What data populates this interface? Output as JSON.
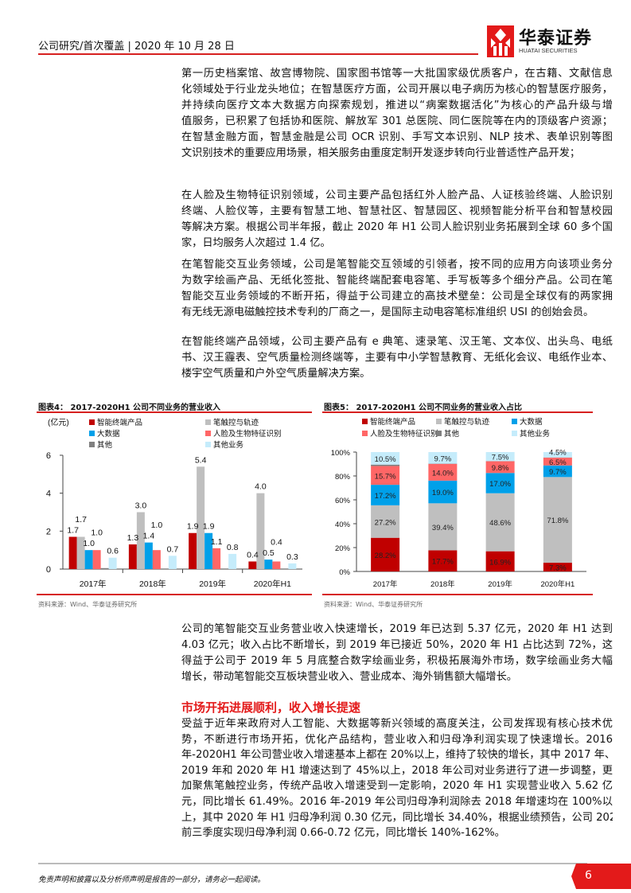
{
  "header": {
    "text": "公司研究/首次覆盖 | 2020 年 10 月 28 日",
    "logo_cn": "华泰证券",
    "logo_en": "HUATAI SECURITIES",
    "accent": "#d6201f"
  },
  "paragraphs": [
    {
      "lines": [
        "第一历史档案馆、故宫博物院、国家图书馆等一大批国家级优质客户，在古籍、文献信息",
        "化领域处于行业龙头地位；在智慧医疗方面，公司开展以电子病历为核心的智慧医疗服务，",
        "并持续向医疗文本大数据方向探索规划，推进以“病案数据活化”为核心的产品升级与增",
        "值服务，已积累了包括协和医院、解放军 301 总医院、同仁医院等在内的顶级客户资源；",
        "在智慧金融方面，智慧金融是公司 OCR 识别、手写文本识别、NLP 技术、表单识别等图",
        "文识别技术的重要应用场景，相关服务由重度定制开发逐步转向行业普适性产品开发；"
      ]
    },
    {
      "lines": [
        "在人脸及生物特征识别领域，公司主要产品包括红外人脸产品、人证核验终端、人脸识别",
        "终端、人脸仪等，主要有智慧工地、智慧社区、智慧园区、视频智能分析平台和智慧校园",
        "等解决方案。根据公司半年报，截止 2020 年 H1 公司人脸识别业务拓展到全球 60 多个国",
        "家，日均服务人次超过 1.4 亿。"
      ]
    },
    {
      "lines": [
        "在笔智能交互业务领域，公司是笔智能交互领域的引领者，按不同的应用方向该项业务分",
        "为数字绘画产品、无纸化签批、智能终端配套电容笔、手写板等多个细分产品。公司在笔",
        "智能交互业务领域的不断开拓，得益于公司建立的高技术壁垒：公司是全球仅有的两家拥",
        "有无线无源电磁触控技术专利的厂商之一，是国际主动电容笔标准组织 USI 的创始会员。"
      ]
    },
    {
      "lines": [
        "在智能终端产品领域，公司主要产品有 e 典笔、速录笔、汉王笔、文本仪、出头鸟、电纸",
        "书、汉王霾表、空气质量检测终端等，主要有中小学智慧教育、无纸化会议、电纸作业本、",
        "楼宇空气质量和户外空气质量解决方案。"
      ]
    },
    {
      "lines": [
        "公司的笔智能交互业务营业收入快速增长，2019 年已达到 5.37 亿元，2020 年 H1 达到",
        "4.03 亿元；收入占比不断增长，到 2019 年已接近 50%，2020 年 H1 占比达到 72%，这",
        "得益于公司于 2019 年 5 月底整合数字绘画业务，积极拓展海外市场，数字绘画业务大幅",
        "增长，带动笔智能交互板块营业收入、营业成本、海外销售额大幅增长。"
      ]
    },
    {
      "lines": [
        "受益于近年来政府对人工智能、大数据等新兴领域的高度关注，公司发挥现有核心技术优",
        "势，不断进行市场开拓，优化产品结构，营业收入和归母净利润实现了快速增长。2016",
        "年-2020H1 年公司营业收入增速基本上都在 20%以上，维持了较快的增长，其中 2017 年、",
        "2019 年和 2020 年 H1 增速达到了 45%以上，2018 年公司对业务进行了进一步调整，更",
        "加聚焦笔触控业务，传统产品收入增速受到一定影响，2020 年 H1 实现营业收入 5.62 亿",
        "元，同比增长 61.49%。2016 年-2019 年公司归母净利润除去 2018 年增速均在 100%以",
        "上，其中 2020 年 H1 归母净利润 0.30 亿元，同比增长 34.40%，根据业绩预告，公司 2020",
        "前三季度实现归母净利润 0.66-0.72 亿元，同比增长 140%-162%。"
      ]
    }
  ],
  "section_heading": "市场开拓进展顺利，收入增长提速",
  "chart_data": [
    {
      "type": "bar",
      "title": "图表4：  2017-2020H1 公司不同业务的营业收入",
      "ylabel": "(亿元)",
      "ylim": [
        0,
        6
      ],
      "yticks": [
        "0",
        "2",
        "4",
        "6"
      ],
      "categories": [
        "2017年",
        "2018年",
        "2019年",
        "2020年H1"
      ],
      "legend_placement": "top",
      "series": [
        {
          "name": "智能终端产品",
          "color": "#c00000",
          "values": [
            1.7,
            1.3,
            1.9,
            0.4
          ],
          "labels": [
            "1.7",
            "1.3",
            "1.9",
            "0.4"
          ]
        },
        {
          "name": "笔触控与轨迹",
          "color": "#bfbfbf",
          "values": [
            1.7,
            3.0,
            5.4,
            4.0
          ],
          "labels": [
            "1.7",
            "3.0",
            "5.4",
            "4.0"
          ]
        },
        {
          "name": "大数据",
          "color": "#00a0e9",
          "values": [
            1.0,
            1.4,
            1.9,
            0.5
          ],
          "labels": [
            "1.0",
            "1.4",
            "1.9",
            "0.5"
          ]
        },
        {
          "name": "人脸及生物特征识别",
          "color": "#ff6666",
          "values": [
            1.0,
            1.0,
            1.1,
            0.4
          ],
          "labels": [
            "1.0",
            "1.0",
            "1.1",
            "0.4"
          ]
        },
        {
          "name": "其他",
          "color": "#7f7f7f",
          "values": [
            0.05,
            0,
            0,
            0
          ],
          "labels": [
            "",
            "",
            "",
            ""
          ]
        },
        {
          "name": "其他业务",
          "color": "#c5ecfb",
          "values": [
            0.6,
            0.7,
            0.8,
            0.3
          ],
          "labels": [
            "0.6",
            "0.7",
            "0.8",
            "0.3"
          ]
        }
      ],
      "source": "资料来源：Wind、华泰证券研究所"
    },
    {
      "type": "bar",
      "stacked": true,
      "title": "图表5：  2017-2020H1 公司不同业务的营业收入占比",
      "ylim": [
        0,
        100
      ],
      "yticks": [
        "0%",
        "20%",
        "40%",
        "60%",
        "80%",
        "100%"
      ],
      "categories": [
        "2017年",
        "2018年",
        "2019年",
        "2020年H1"
      ],
      "legend_placement": "top",
      "series": [
        {
          "name": "智能终端产品",
          "color": "#c00000",
          "values": [
            28.2,
            17.7,
            16.9,
            7.3
          ],
          "labels": [
            "28.2%",
            "17.7%",
            "16.9%",
            "7.3%"
          ]
        },
        {
          "name": "笔触控与轨迹",
          "color": "#bfbfbf",
          "values": [
            27.2,
            39.4,
            48.6,
            71.8
          ],
          "labels": [
            "27.2%",
            "39.4%",
            "48.6%",
            "71.8%"
          ]
        },
        {
          "name": "大数据",
          "color": "#00a0e9",
          "values": [
            17.2,
            19.0,
            17.0,
            9.7
          ],
          "labels": [
            "17.2%",
            "19.0%",
            "17.0%",
            "9.7%"
          ]
        },
        {
          "name": "人脸及生物特征识别",
          "color": "#ff6666",
          "values": [
            15.7,
            14.0,
            9.8,
            6.5
          ],
          "labels": [
            "15.7%",
            "14.0%",
            "9.8%",
            "6.5%"
          ]
        },
        {
          "name": "其他",
          "color": "#7f7f7f",
          "values": [
            1.2,
            0.2,
            0.2,
            0.2
          ],
          "labels": [
            "",
            "",
            "",
            ""
          ]
        },
        {
          "name": "其他业务",
          "color": "#c5ecfb",
          "values": [
            10.5,
            9.7,
            7.5,
            4.5
          ],
          "labels": [
            "10.5%",
            "9.7%",
            "7.5%",
            "4.5%"
          ]
        }
      ],
      "source": "资料来源：Wind、华泰证券研究所"
    }
  ],
  "footer": {
    "disclaimer": "免责声明和披露以及分析师声明是报告的一部分，请务必一起阅读。",
    "page_number": "6"
  }
}
